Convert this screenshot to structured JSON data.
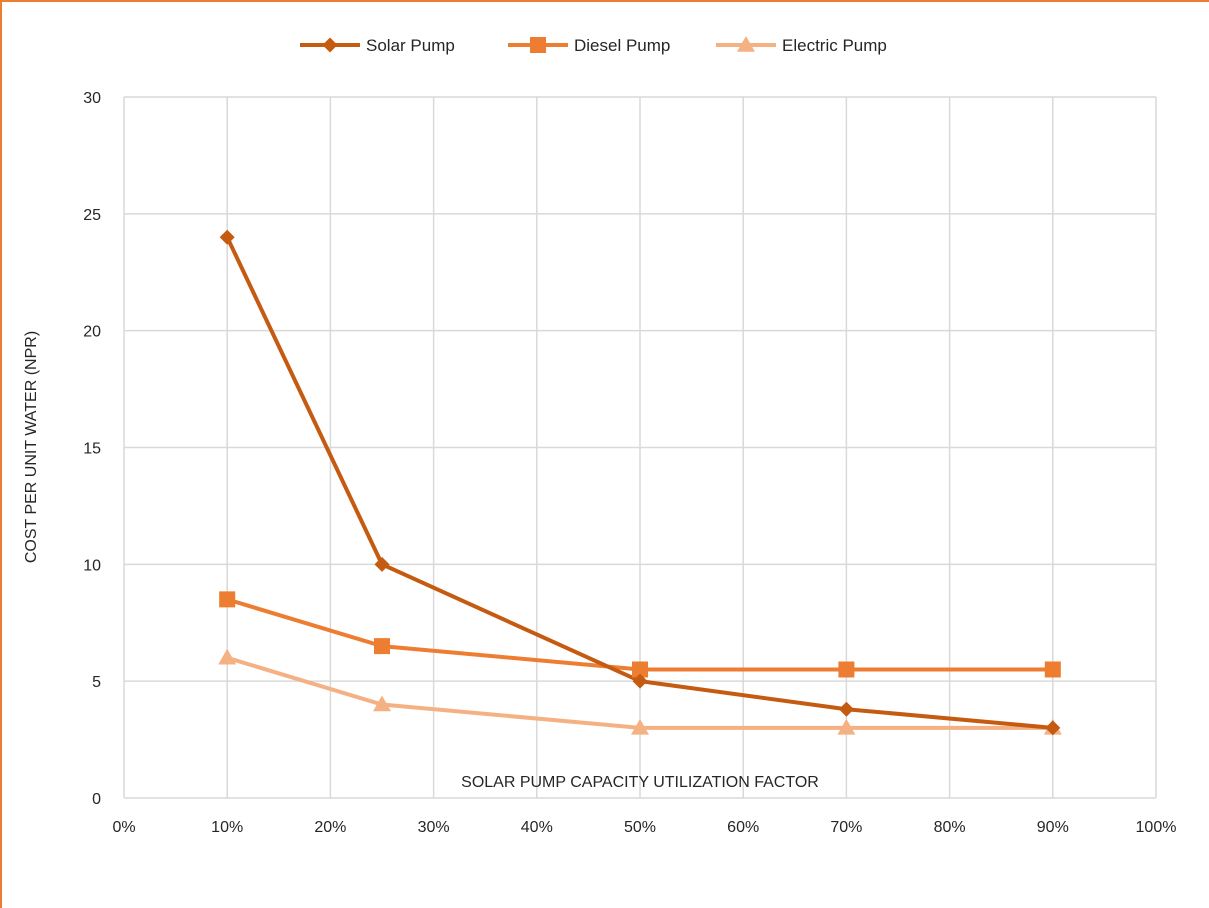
{
  "chart_data": {
    "type": "line",
    "title": "",
    "xlabel": "SOLAR PUMP CAPACITY UTILIZATION FACTOR",
    "ylabel": "COST PER UNIT WATER (NPR)",
    "x": [
      10,
      25,
      50,
      70,
      90
    ],
    "xlim": [
      0,
      100
    ],
    "ylim": [
      0,
      30
    ],
    "x_ticks": [
      0,
      10,
      20,
      30,
      40,
      50,
      60,
      70,
      80,
      90,
      100
    ],
    "x_tick_labels": [
      "0%",
      "10%",
      "20%",
      "30%",
      "40%",
      "50%",
      "60%",
      "70%",
      "80%",
      "90%",
      "100%"
    ],
    "y_ticks": [
      0,
      5,
      10,
      15,
      20,
      25,
      30
    ],
    "y_tick_labels": [
      "0",
      "5",
      "10",
      "15",
      "20",
      "25",
      "30"
    ],
    "grid": true,
    "legend_position": "top",
    "series": [
      {
        "name": "Solar Pump",
        "values": [
          24,
          10,
          5,
          3.8,
          3
        ],
        "color": "#C55A11",
        "marker": "diamond"
      },
      {
        "name": "Diesel Pump",
        "values": [
          8.5,
          6.5,
          5.5,
          5.5,
          5.5
        ],
        "color": "#ED7D31",
        "marker": "square"
      },
      {
        "name": "Electric Pump",
        "values": [
          6,
          4,
          3,
          3,
          3
        ],
        "color": "#F4B183",
        "marker": "triangle"
      }
    ]
  },
  "colors": {
    "frame_border": "#ED7D31",
    "grid": "#D9D9D9",
    "text": "#262626"
  }
}
